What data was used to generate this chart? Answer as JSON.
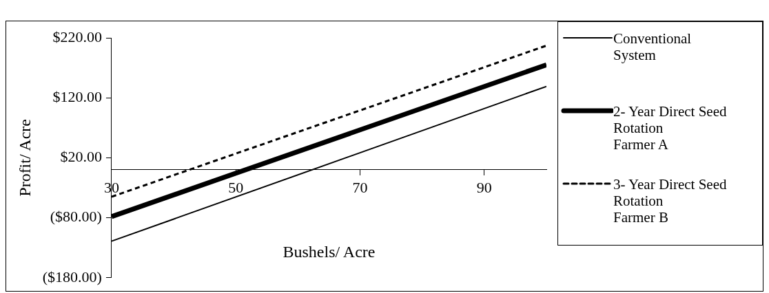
{
  "chart_data": {
    "type": "line",
    "xlabel": "Bushels/ Acre",
    "ylabel": "Profit/ Acre",
    "x": [
      30,
      100
    ],
    "series": [
      {
        "name": "Conventional\nSystem",
        "color": "#000000",
        "values": [
          -119,
          139
        ],
        "line_style": "solid"
      },
      {
        "name": "2- Year Direct Seed\nRotation\nFarmer A",
        "color": "#000000",
        "values": [
          -78,
          175
        ],
        "line_style": "solid"
      },
      {
        "name": "3- Year Direct Seed\nRotation\nFarmer B",
        "color": "#000000",
        "values": [
          -45,
          207
        ],
        "line_style": "dashed"
      }
    ],
    "xlim": [
      30,
      100
    ],
    "xticks": [
      30,
      50,
      70,
      90
    ],
    "ylim": [
      -180,
      220
    ],
    "yticks": [
      {
        "value": 220,
        "label": "$220.00"
      },
      {
        "value": 120,
        "label": "$120.00"
      },
      {
        "value": 20,
        "label": "$20.00"
      },
      {
        "value": -80,
        "label": "($80.00)"
      },
      {
        "value": -180,
        "label": "($180.00)"
      }
    ],
    "grid": false,
    "legend": "right",
    "marker": "none"
  }
}
